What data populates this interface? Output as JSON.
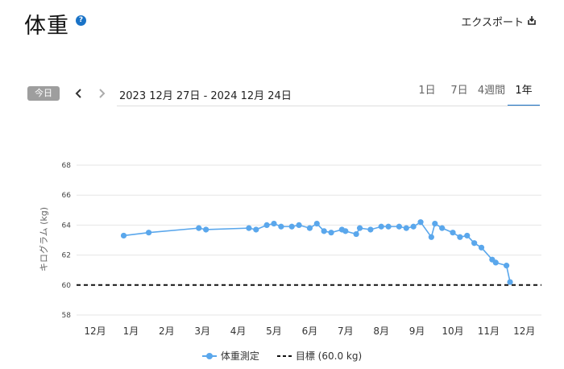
{
  "header": {
    "title": "体重",
    "help_icon": "?",
    "export_label": "エクスポート"
  },
  "toolbar": {
    "today_label": "今日",
    "date_range": "2023 12月 27日 - 2024 12月 24日",
    "tabs": [
      {
        "label": "1日",
        "active": false
      },
      {
        "label": "7日",
        "active": false
      },
      {
        "label": "4週間",
        "active": false
      },
      {
        "label": "1年",
        "active": true
      }
    ]
  },
  "colors": {
    "series": "#5aa7ec",
    "goal": "#111111",
    "accent": "#1a73c7",
    "grid": "#e6e6e6"
  },
  "chart_data": {
    "type": "line",
    "ylabel": "キログラム (kg)",
    "ylim": [
      58,
      68
    ],
    "yticks": [
      58,
      60,
      62,
      64,
      66,
      68
    ],
    "xticks": [
      "12月",
      "1月",
      "2月",
      "3月",
      "4月",
      "5月",
      "6月",
      "7月",
      "8月",
      "9月",
      "10月",
      "11月",
      "12月"
    ],
    "series": [
      {
        "name": "体重測定",
        "x": [
          0.8,
          1.5,
          2.9,
          3.1,
          4.3,
          4.5,
          4.8,
          5.0,
          5.2,
          5.5,
          5.7,
          6.0,
          6.2,
          6.4,
          6.6,
          6.9,
          7.0,
          7.3,
          7.4,
          7.7,
          8.0,
          8.2,
          8.5,
          8.7,
          8.9,
          9.1,
          9.4,
          9.5,
          9.7,
          10.0,
          10.2,
          10.4,
          10.6,
          10.8,
          11.1,
          11.2,
          11.5,
          11.6
        ],
        "values": [
          63.3,
          63.5,
          63.8,
          63.7,
          63.8,
          63.7,
          64.0,
          64.1,
          63.9,
          63.9,
          64.0,
          63.8,
          64.1,
          63.6,
          63.5,
          63.7,
          63.6,
          63.4,
          63.8,
          63.7,
          63.9,
          63.9,
          63.9,
          63.8,
          63.9,
          64.2,
          63.2,
          64.1,
          63.8,
          63.5,
          63.2,
          63.3,
          62.8,
          62.5,
          61.7,
          61.5,
          61.3,
          60.2
        ]
      }
    ],
    "goal": {
      "label": "目標 (60.0 kg)",
      "value": 60.0
    }
  }
}
